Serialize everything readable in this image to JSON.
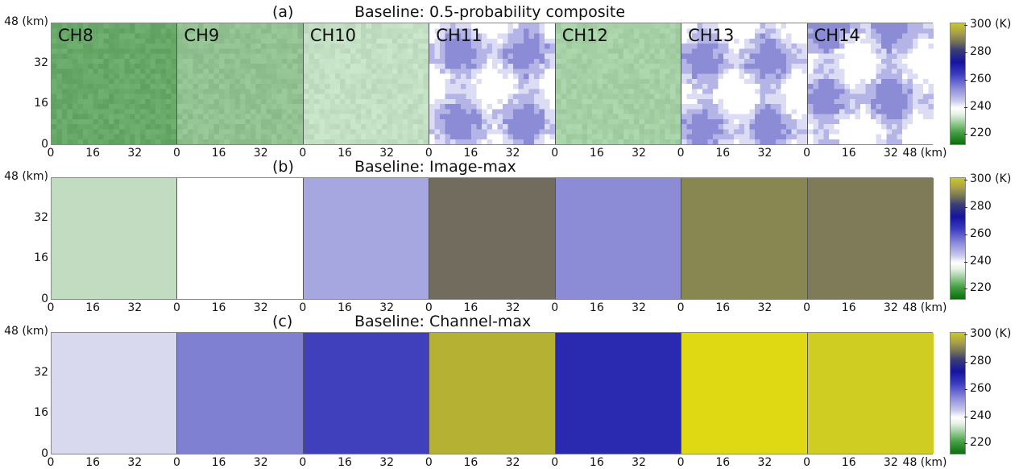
{
  "panels_channels": [
    "CH8",
    "CH9",
    "CH10",
    "CH11",
    "CH12",
    "CH13",
    "CH14"
  ],
  "rows": [
    {
      "tag": "(a)",
      "title": "Baseline: 0.5-probability composite",
      "show_channel_labels": true,
      "colors": [
        "#68a868",
        "#92c292",
        "#c4e0c4",
        "textured-blue",
        "#a6d0a6",
        "textured-blue2",
        "textured-blue3"
      ]
    },
    {
      "tag": "(b)",
      "title": "Baseline: Image-max",
      "show_channel_labels": false,
      "colors": [
        "#c2dcc2",
        "#ffffff",
        "#a6a6e0",
        "#716c5e",
        "#8b8bd6",
        "#888651",
        "#7f7a57"
      ]
    },
    {
      "tag": "(c)",
      "title": "Baseline: Channel-max",
      "show_channel_labels": false,
      "colors": [
        "#d8d8ef",
        "#8080d2",
        "#4040bd",
        "#b5b132",
        "#2a2ab1",
        "#dfd914",
        "#cfcc22"
      ]
    }
  ],
  "axes": {
    "y_ticks": [
      "0",
      "16",
      "32",
      "48 (km)"
    ],
    "x_ticks_panel": [
      "0",
      "16",
      "32"
    ],
    "x_last_label": "48 (km)"
  },
  "colorbar": {
    "ticks": [
      "220",
      "240",
      "260",
      "280",
      "300 (K)"
    ],
    "vmin": 212,
    "vmax": 302
  },
  "chart_data": {
    "type": "heatmap",
    "xlabel": "",
    "ylabel": "",
    "xlim": [
      0,
      48
    ],
    "ylim": [
      0,
      48
    ],
    "colorbar_unit": "K",
    "colorbar_ticks": [
      220,
      240,
      260,
      280,
      300
    ]
  }
}
